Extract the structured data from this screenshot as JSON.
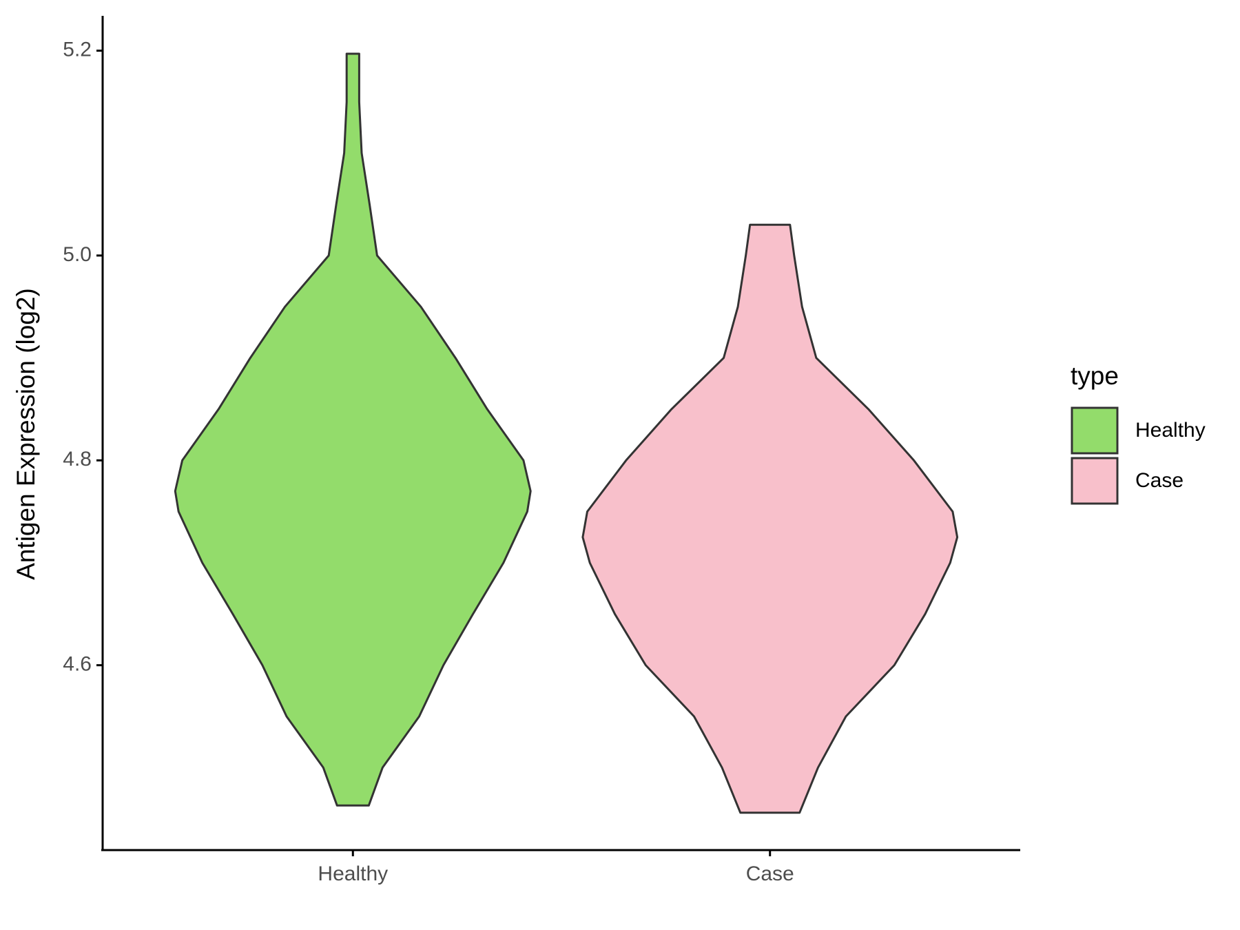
{
  "chart_data": {
    "type": "violin",
    "y_label": "Antigen Expression (log2)",
    "categories": [
      "Healthy",
      "Case"
    ],
    "series": [
      {
        "name": "Healthy",
        "color": "#93dc6b",
        "y": [
          4.463,
          4.5,
          4.55,
          4.6,
          4.65,
          4.7,
          4.75,
          4.77,
          4.8,
          4.85,
          4.9,
          4.95,
          5.0,
          5.05,
          5.1,
          5.15,
          5.197
        ],
        "width": [
          0.038,
          0.071,
          0.159,
          0.217,
          0.288,
          0.361,
          0.418,
          0.426,
          0.409,
          0.322,
          0.246,
          0.163,
          0.058,
          0.04,
          0.021,
          0.015,
          0.015
        ]
      },
      {
        "name": "Case",
        "color": "#f8c0cb",
        "y": [
          4.456,
          4.5,
          4.55,
          4.6,
          4.65,
          4.7,
          4.725,
          4.75,
          4.8,
          4.85,
          4.9,
          4.95,
          5.0,
          5.03
        ],
        "width": [
          0.071,
          0.115,
          0.182,
          0.298,
          0.372,
          0.432,
          0.449,
          0.438,
          0.345,
          0.236,
          0.111,
          0.077,
          0.058,
          0.048
        ]
      }
    ],
    "ylim": [
      4.4195,
      5.234
    ],
    "yticks": [
      {
        "value": 4.6,
        "label": "4.6"
      },
      {
        "value": 4.8,
        "label": "4.8"
      },
      {
        "value": 5.0,
        "label": "5.0"
      },
      {
        "value": 5.2,
        "label": "5.2"
      }
    ],
    "legend_title": "type",
    "legend_position": "right"
  }
}
